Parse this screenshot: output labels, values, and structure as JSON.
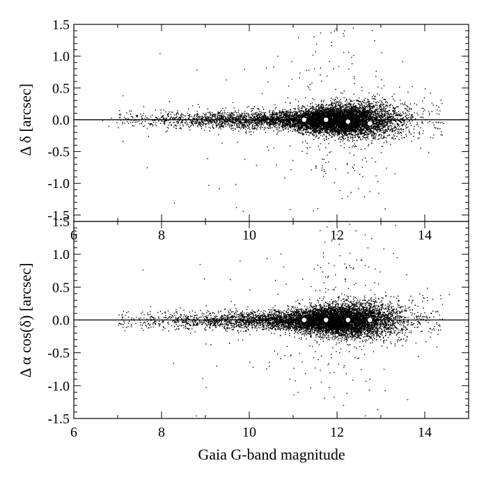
{
  "chart_data": [
    {
      "type": "scatter",
      "panel": "top",
      "xlim": [
        6,
        15
      ],
      "ylim": [
        -1.6,
        1.5
      ],
      "xticks": [
        "6",
        "8",
        "10",
        "12",
        "14"
      ],
      "yticks": [
        "1.5",
        "1.0",
        "0.5",
        "0.0",
        "-0.5",
        "-1.0",
        "-1.5"
      ],
      "xlabel": "",
      "ylabel": "Δ δ [arcsec]",
      "reference_line_y": 0.0,
      "binned_medians": {
        "x": [
          11.25,
          11.75,
          12.25,
          12.75
        ],
        "y": [
          0.0,
          0.0,
          -0.03,
          -0.06
        ]
      },
      "point_cloud": {
        "approx_count": 9000,
        "x_range": [
          6.4,
          14.6
        ],
        "densest_x_range": [
          11.0,
          13.2
        ],
        "y_spread": [
          -1.5,
          1.5
        ],
        "center_y": 0.0
      },
      "grid": false
    },
    {
      "type": "scatter",
      "panel": "bottom",
      "xlim": [
        6,
        15
      ],
      "ylim": [
        -1.5,
        1.5
      ],
      "xticks": [
        "6",
        "8",
        "10",
        "12",
        "14"
      ],
      "yticks": [
        "1.5",
        "1.0",
        "0.5",
        "0.0",
        "-0.5",
        "-1.0",
        "-1.5"
      ],
      "xlabel": "Gaia G-band magnitude",
      "ylabel": "Δ α cos(δ) [arcsec]",
      "reference_line_y": 0.0,
      "binned_medians": {
        "x": [
          11.25,
          11.75,
          12.25,
          12.75
        ],
        "y": [
          0.0,
          0.0,
          0.0,
          0.0
        ]
      },
      "point_cloud": {
        "approx_count": 9000,
        "x_range": [
          6.4,
          14.6
        ],
        "densest_x_range": [
          11.0,
          13.2
        ],
        "y_spread": [
          -1.5,
          1.5
        ],
        "center_y": 0.0
      },
      "grid": false
    }
  ]
}
